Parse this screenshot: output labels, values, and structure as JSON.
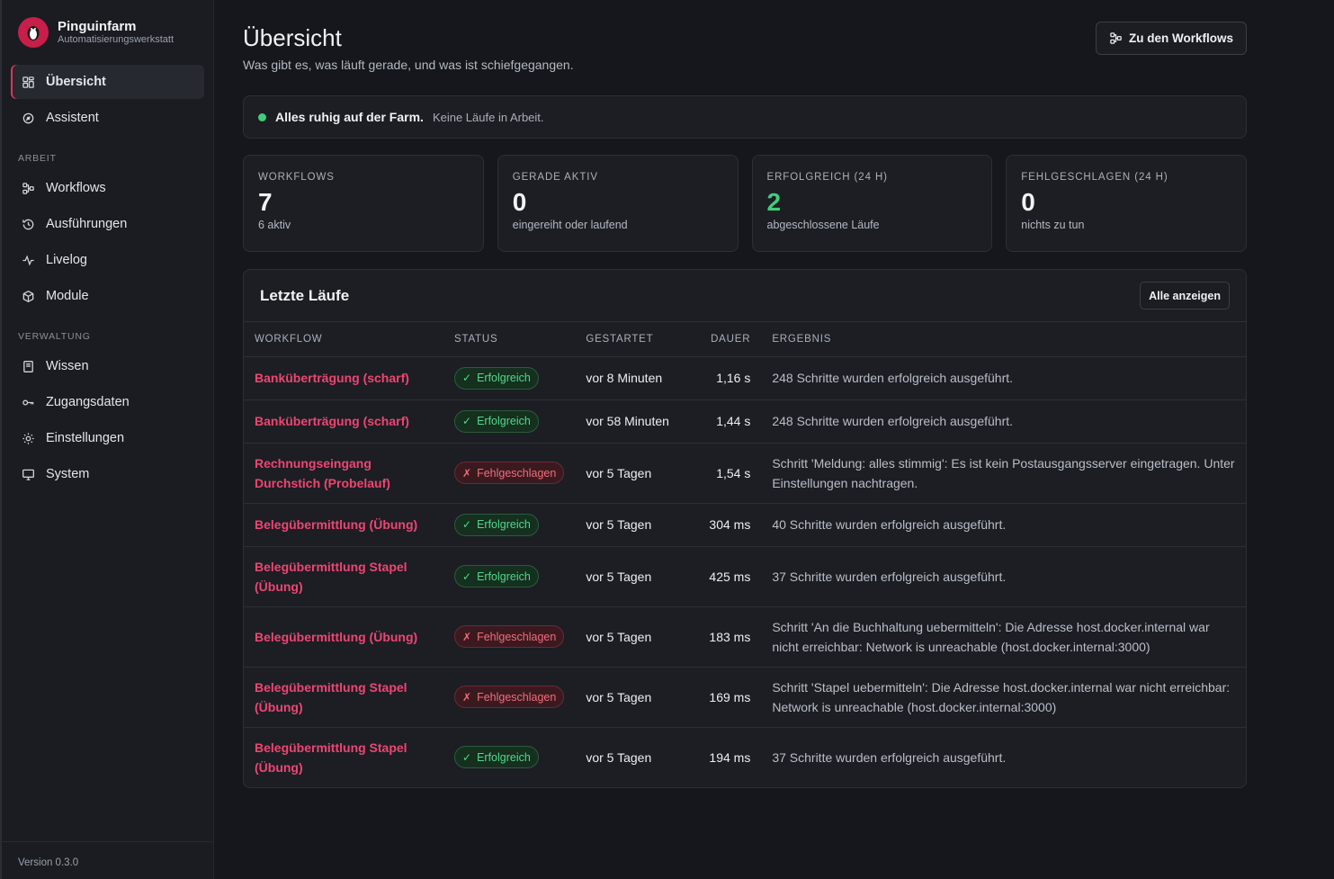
{
  "brand": {
    "name": "Pinguinfarm",
    "subtitle": "Automatisierungswerkstatt"
  },
  "nav": {
    "items_top": [
      {
        "label": "Übersicht",
        "icon": "dashboard-icon",
        "active": true
      },
      {
        "label": "Assistent",
        "icon": "assistant-icon"
      }
    ],
    "section_work": "ARBEIT",
    "items_work": [
      {
        "label": "Workflows",
        "icon": "workflow-icon"
      },
      {
        "label": "Ausführungen",
        "icon": "history-icon"
      },
      {
        "label": "Livelog",
        "icon": "activity-icon"
      },
      {
        "label": "Module",
        "icon": "cube-icon"
      }
    ],
    "section_admin": "VERWALTUNG",
    "items_admin": [
      {
        "label": "Wissen",
        "icon": "book-icon"
      },
      {
        "label": "Zugangsdaten",
        "icon": "key-icon"
      },
      {
        "label": "Einstellungen",
        "icon": "gear-icon"
      },
      {
        "label": "System",
        "icon": "monitor-icon"
      }
    ]
  },
  "footer": {
    "version": "Version 0.3.0"
  },
  "header": {
    "title": "Übersicht",
    "subtitle": "Was gibt es, was läuft gerade, und was ist schiefgegangen.",
    "button_label": "Zu den Workflows"
  },
  "status": {
    "strong": "Alles ruhig auf der Farm.",
    "text": "Keine Läufe in Arbeit.",
    "color": "#3ecf7a"
  },
  "stats": [
    {
      "label": "WORKFLOWS",
      "value": "7",
      "sub": "6 aktiv"
    },
    {
      "label": "GERADE AKTIV",
      "value": "0",
      "sub": "eingereiht oder laufend"
    },
    {
      "label": "ERFOLGREICH (24 H)",
      "value": "2",
      "sub": "abgeschlossene Läufe",
      "accent": "#3ecf7a"
    },
    {
      "label": "FEHLGESCHLAGEN (24 H)",
      "value": "0",
      "sub": "nichts zu tun"
    }
  ],
  "runs": {
    "title": "Letzte Läufe",
    "show_all": "Alle anzeigen",
    "columns": {
      "workflow": "WORKFLOW",
      "status": "STATUS",
      "started": "GESTARTET",
      "duration": "DAUER",
      "result": "ERGEBNIS"
    },
    "rows": [
      {
        "workflow": "Banküberträgung (scharf)",
        "status": "Erfolgreich",
        "ok": true,
        "started": "vor 8 Minuten",
        "duration": "1,16 s",
        "result": "248 Schritte wurden erfolgreich ausgeführt."
      },
      {
        "workflow": "Banküberträgung (scharf)",
        "status": "Erfolgreich",
        "ok": true,
        "started": "vor 58 Minuten",
        "duration": "1,44 s",
        "result": "248 Schritte wurden erfolgreich ausgeführt."
      },
      {
        "workflow": "Rechnungseingang Durchstich (Probelauf)",
        "status": "Fehlgeschlagen",
        "ok": false,
        "started": "vor 5 Tagen",
        "duration": "1,54 s",
        "result": "Schritt 'Meldung: alles stimmig': Es ist kein Postausgangsserver eingetragen. Unter Einstellungen nachtragen."
      },
      {
        "workflow": "Belegübermittlung (Übung)",
        "status": "Erfolgreich",
        "ok": true,
        "started": "vor 5 Tagen",
        "duration": "304 ms",
        "result": "40 Schritte wurden erfolgreich ausgeführt."
      },
      {
        "workflow": "Belegübermittlung Stapel (Übung)",
        "status": "Erfolgreich",
        "ok": true,
        "started": "vor 5 Tagen",
        "duration": "425 ms",
        "result": "37 Schritte wurden erfolgreich ausgeführt."
      },
      {
        "workflow": "Belegübermittlung (Übung)",
        "status": "Fehlgeschlagen",
        "ok": false,
        "started": "vor 5 Tagen",
        "duration": "183 ms",
        "result": "Schritt 'An die Buchhaltung uebermitteln': Die Adresse host.docker.internal war nicht erreichbar: Network is unreachable (host.docker.internal:3000)"
      },
      {
        "workflow": "Belegübermittlung Stapel (Übung)",
        "status": "Fehlgeschlagen",
        "ok": false,
        "started": "vor 5 Tagen",
        "duration": "169 ms",
        "result": "Schritt 'Stapel uebermitteln': Die Adresse host.docker.internal war nicht erreichbar: Network is unreachable (host.docker.internal:3000)"
      },
      {
        "workflow": "Belegübermittlung Stapel (Übung)",
        "status": "Erfolgreich",
        "ok": true,
        "started": "vor 5 Tagen",
        "duration": "194 ms",
        "result": "37 Schritte wurden erfolgreich ausgeführt."
      }
    ]
  }
}
